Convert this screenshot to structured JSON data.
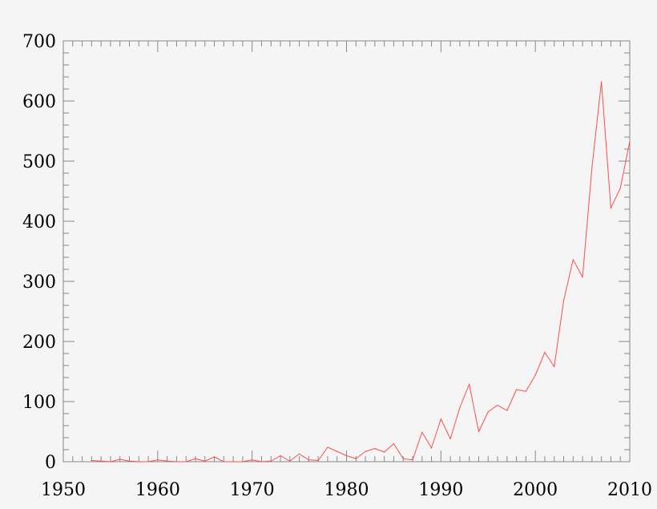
{
  "chart_data": {
    "type": "line",
    "title": "",
    "xlabel": "",
    "ylabel": "",
    "xlim": [
      1950,
      2010
    ],
    "ylim": [
      0,
      700
    ],
    "x_ticks": [
      1950,
      1960,
      1970,
      1980,
      1990,
      2000,
      2010
    ],
    "y_ticks": [
      0,
      100,
      200,
      300,
      400,
      500,
      600,
      700
    ],
    "x_tick_labels": [
      "1950",
      "1960",
      "1970",
      "1980",
      "1990",
      "2000",
      "2010"
    ],
    "y_tick_labels": [
      "0",
      "100",
      "200",
      "300",
      "400",
      "500",
      "600",
      "700"
    ],
    "grid": false,
    "series": [
      {
        "color": "#ff4d4d",
        "x": [
          1953,
          1954,
          1955,
          1956,
          1957,
          1958,
          1959,
          1960,
          1961,
          1962,
          1963,
          1964,
          1965,
          1966,
          1967,
          1968,
          1969,
          1970,
          1971,
          1972,
          1973,
          1974,
          1975,
          1976,
          1977,
          1978,
          1979,
          1980,
          1981,
          1982,
          1983,
          1984,
          1985,
          1986,
          1987,
          1988,
          1989,
          1990,
          1991,
          1992,
          1993,
          1994,
          1995,
          1996,
          1997,
          1998,
          1999,
          2000,
          2001,
          2002,
          2003,
          2004,
          2005,
          2006,
          2007,
          2008,
          2009,
          2010
        ],
        "values": [
          2,
          1,
          0,
          4,
          1,
          0,
          0,
          3,
          1,
          0,
          0,
          5,
          1,
          8,
          0,
          0,
          0,
          3,
          0,
          1,
          10,
          1,
          13,
          3,
          2,
          24,
          17,
          10,
          5,
          17,
          22,
          16,
          30,
          5,
          3,
          49,
          23,
          71,
          38,
          90,
          129,
          50,
          83,
          94,
          85,
          120,
          117,
          144,
          182,
          158,
          268,
          336,
          307,
          490,
          632,
          422,
          455,
          533
        ]
      }
    ]
  }
}
